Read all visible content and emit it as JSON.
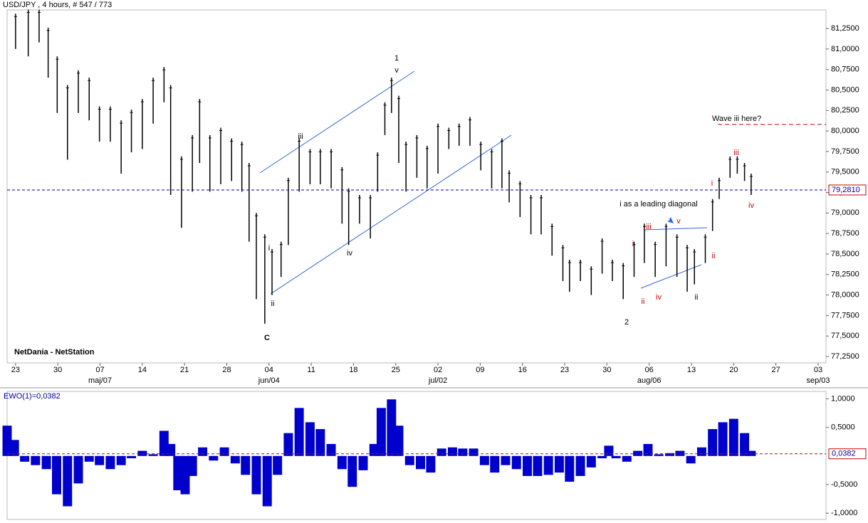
{
  "header": {
    "title": "USD/JPY , 4 hours, # 547 / 773",
    "brand": "NetDania - NetStation"
  },
  "chart_data": [
    {
      "type": "range-bar",
      "color": "#000000",
      "x": [
        0,
        2.1,
        3.9,
        5.4,
        6.9,
        8.6,
        10.4,
        12.2,
        13.9,
        15.7,
        17.5,
        19.2,
        21.0,
        22.8,
        24.6,
        25.7,
        27.5,
        29.3,
        30.5,
        32.2,
        34.0,
        35.8,
        37.5,
        38.7,
        39.9,
        41.3,
        42.5,
        44.0,
        45.2,
        47.0,
        48.8,
        50.5,
        52.3,
        54.1,
        55.2,
        57.0,
        58.8,
        60.0,
        61.2,
        62.3,
        63.5,
        64.7,
        66.5,
        68.2,
        70.0,
        71.8,
        73.5,
        75.3,
        77.1,
        78.9,
        80.6,
        81.8,
        83.6,
        85.4,
        87.1,
        88.9,
        90.7,
        91.8,
        93.6,
        95.4,
        97.2,
        98.9,
        100.7,
        102.5,
        104.2,
        106.0,
        107.8,
        109.6,
        111.3,
        112.5,
        114.3,
        115.5,
        116.6,
        118.4,
        119.6,
        120.8,
        121.9
      ],
      "high": [
        81.43,
        81.48,
        81.48,
        81.26,
        80.91,
        80.56,
        80.74,
        80.65,
        80.3,
        80.3,
        80.13,
        80.26,
        80.39,
        80.65,
        80.78,
        80.56,
        79.69,
        79.95,
        80.39,
        79.95,
        80.04,
        79.91,
        79.87,
        79.61,
        79.0,
        78.74,
        78.56,
        78.65,
        79.43,
        79.91,
        79.78,
        79.78,
        79.78,
        79.56,
        79.3,
        79.22,
        79.22,
        79.74,
        80.35,
        80.65,
        80.43,
        79.87,
        79.95,
        79.82,
        80.09,
        80.04,
        80.09,
        80.17,
        79.87,
        79.78,
        79.91,
        79.52,
        79.39,
        79.22,
        79.22,
        78.87,
        78.61,
        78.43,
        78.43,
        78.35,
        78.69,
        78.43,
        78.39,
        78.65,
        78.87,
        78.65,
        78.87,
        78.74,
        78.61,
        78.56,
        78.74,
        79.17,
        79.43,
        79.69,
        79.69,
        79.61,
        79.48
      ],
      "low": [
        81.0,
        80.91,
        81.08,
        80.65,
        80.22,
        79.65,
        80.22,
        80.13,
        79.87,
        79.87,
        79.48,
        79.74,
        79.78,
        80.09,
        80.35,
        79.22,
        78.82,
        79.26,
        79.61,
        79.26,
        79.35,
        79.39,
        79.26,
        78.65,
        77.95,
        77.65,
        78.0,
        78.22,
        78.61,
        79.26,
        79.35,
        79.35,
        79.3,
        78.87,
        78.61,
        78.87,
        78.69,
        79.26,
        79.95,
        80.22,
        79.61,
        79.26,
        79.43,
        79.3,
        79.48,
        79.78,
        79.82,
        79.82,
        79.52,
        79.3,
        79.3,
        79.13,
        78.95,
        78.74,
        78.74,
        78.48,
        78.17,
        78.04,
        78.17,
        78.0,
        78.26,
        78.17,
        77.95,
        78.22,
        78.39,
        78.22,
        78.35,
        78.22,
        78.04,
        78.13,
        78.39,
        78.78,
        79.17,
        79.43,
        79.48,
        79.39,
        79.22
      ],
      "xlim": [
        -1.4,
        134.3
      ],
      "xticks": [
        {
          "value": 0,
          "label": "23"
        },
        {
          "value": 7,
          "label": "30"
        },
        {
          "value": 14,
          "label": "07"
        },
        {
          "value": 21,
          "label": "14"
        },
        {
          "value": 28,
          "label": "21"
        },
        {
          "value": 35,
          "label": "28"
        },
        {
          "value": 42,
          "label": "04"
        },
        {
          "value": 49,
          "label": "11"
        },
        {
          "value": 56,
          "label": "18"
        },
        {
          "value": 63,
          "label": "25"
        },
        {
          "value": 70,
          "label": "02"
        },
        {
          "value": 77,
          "label": "09"
        },
        {
          "value": 84,
          "label": "16"
        },
        {
          "value": 91,
          "label": "23"
        },
        {
          "value": 98,
          "label": "30"
        },
        {
          "value": 105,
          "label": "06"
        },
        {
          "value": 112,
          "label": "13"
        },
        {
          "value": 119,
          "label": "20"
        },
        {
          "value": 126,
          "label": "27"
        },
        {
          "value": 133,
          "label": "03"
        }
      ],
      "month_ticks": [
        {
          "value": 14,
          "label": "maj/07"
        },
        {
          "value": 42,
          "label": "jun/04"
        },
        {
          "value": 70,
          "label": "jul/02"
        },
        {
          "value": 105,
          "label": "aug/06"
        },
        {
          "value": 133,
          "label": "sep/03"
        }
      ],
      "ylim": [
        77.172,
        81.476
      ],
      "yticks": [
        {
          "value": 77.25,
          "label": "77,2500"
        },
        {
          "value": 77.5,
          "label": "77,5000"
        },
        {
          "value": 77.75,
          "label": "77,7500"
        },
        {
          "value": 78,
          "label": "78,0000"
        },
        {
          "value": 78.25,
          "label": "78,2500"
        },
        {
          "value": 78.5,
          "label": "78,5000"
        },
        {
          "value": 78.75,
          "label": "78,7500"
        },
        {
          "value": 79,
          "label": "79,0000"
        },
        {
          "value": 79.25,
          "label": "79,2500"
        },
        {
          "value": 79.5,
          "label": "79,5000"
        },
        {
          "value": 79.75,
          "label": "79,7500"
        },
        {
          "value": 80,
          "label": "80,0000"
        },
        {
          "value": 80.25,
          "label": "80,2500"
        },
        {
          "value": 80.5,
          "label": "80,5000"
        },
        {
          "value": 80.75,
          "label": "80,7500"
        },
        {
          "value": 81,
          "label": "81,0000"
        },
        {
          "value": 81.25,
          "label": "81,2500"
        }
      ],
      "last": {
        "value": 79.281,
        "label": "79,2810",
        "color": "#000099"
      },
      "target": {
        "value": 80.08,
        "label": "Wave iii here?",
        "color": "#cc0000"
      },
      "annotations": [
        {
          "text": "1",
          "color": "#000000"
        },
        {
          "text": "v",
          "color": "#000000"
        },
        {
          "text": "iii",
          "color": "#000000"
        },
        {
          "text": "iv",
          "color": "#000000"
        },
        {
          "text": "ii",
          "color": "#000000"
        },
        {
          "text": "i",
          "color": "#000000"
        },
        {
          "text": "C",
          "color": "#000000"
        },
        {
          "text": "2",
          "color": "#000000"
        },
        {
          "text": "i as a leading diagonal",
          "color": "#000000"
        },
        {
          "text": "v",
          "color": "#cc0000"
        },
        {
          "text": "iii",
          "color": "#cc0000"
        },
        {
          "text": "i",
          "color": "#cc0000"
        },
        {
          "text": "ii",
          "color": "#cc0000"
        },
        {
          "text": "iv",
          "color": "#cc0000"
        },
        {
          "text": "ii",
          "color": "#000000"
        },
        {
          "text": "i",
          "color": "#cc0000"
        },
        {
          "text": "ii",
          "color": "#cc0000"
        },
        {
          "text": "iii",
          "color": "#cc0000"
        },
        {
          "text": "iv",
          "color": "#cc0000"
        }
      ]
    },
    {
      "type": "histogram-osc",
      "title": "EWO(1)=0,0382",
      "color": "#0000cc",
      "x": [
        -1.4,
        -0.2,
        1.5,
        3.3,
        5.1,
        6.8,
        8.6,
        10.4,
        12.2,
        13.9,
        15.7,
        17.5,
        19.2,
        21.0,
        22.8,
        24.6,
        25.7,
        26.9,
        28.1,
        29.3,
        31.0,
        32.8,
        34.6,
        36.4,
        38.1,
        39.9,
        41.7,
        43.4,
        45.2,
        47.0,
        48.8,
        50.5,
        52.3,
        54.1,
        55.8,
        57.6,
        59.4,
        60.6,
        62.3,
        63.5,
        65.3,
        67.1,
        68.8,
        70.6,
        72.4,
        74.1,
        75.9,
        77.7,
        79.4,
        81.2,
        83.0,
        84.8,
        86.5,
        88.3,
        90.1,
        91.8,
        93.6,
        95.4,
        97.2,
        98.3,
        99.5,
        101.3,
        103.1,
        104.8,
        106.6,
        108.4,
        110.1,
        111.9,
        113.7,
        115.5,
        117.2,
        119.0,
        120.8,
        121.9
      ],
      "values": [
        0.53,
        0.28,
        -0.1,
        -0.16,
        -0.23,
        -0.67,
        -0.88,
        -0.48,
        -0.1,
        -0.16,
        -0.23,
        -0.16,
        -0.04,
        0.09,
        0.03,
        0.44,
        0.21,
        -0.6,
        -0.67,
        -0.35,
        0.15,
        -0.08,
        0.15,
        -0.13,
        -0.33,
        -0.67,
        -0.88,
        -0.33,
        0.4,
        0.84,
        0.59,
        0.47,
        0.21,
        -0.23,
        -0.54,
        -0.25,
        0.21,
        0.84,
        0.99,
        0.53,
        -0.16,
        -0.23,
        -0.29,
        0.13,
        0.15,
        0.13,
        0.13,
        -0.16,
        -0.29,
        -0.16,
        -0.23,
        -0.35,
        -0.35,
        -0.33,
        -0.29,
        -0.45,
        -0.35,
        -0.2,
        -0.04,
        0.18,
        -0.04,
        -0.1,
        0.09,
        0.21,
        0.03,
        0.05,
        0.09,
        -0.13,
        0.15,
        0.47,
        0.59,
        0.65,
        0.4,
        0.09
      ],
      "xlim": [
        -1.4,
        134.3
      ],
      "ylim": [
        -1.11,
        1.13
      ],
      "yticks": [
        {
          "value": 1,
          "label": "1,0000"
        },
        {
          "value": 0.5,
          "label": "0,5000"
        },
        {
          "value": -0.5,
          "label": "-0,5000"
        },
        {
          "value": -1,
          "label": "-1,0000"
        }
      ],
      "last": {
        "value": 0.0382,
        "label": "0,0382",
        "color": "#cc0000"
      }
    }
  ]
}
